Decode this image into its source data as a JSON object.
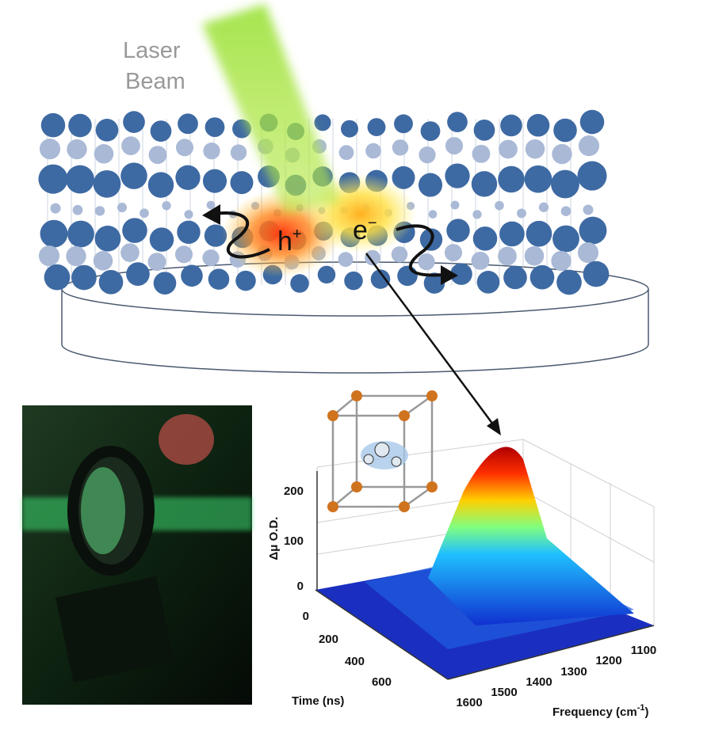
{
  "laser_label": {
    "lines": [
      "Laser",
      "Beam"
    ]
  },
  "hole_label": {
    "base": "h",
    "sup": "+"
  },
  "electron_label": {
    "base": "e",
    "sup": "−"
  },
  "plot": {
    "y_label": "Δμ O.D.",
    "y_ticks": [
      "0",
      "100",
      "200"
    ],
    "time_label": "Time (ns)",
    "time_ticks": [
      "0",
      "200",
      "400",
      "600"
    ],
    "frequency_label": {
      "base": "Frequency (cm",
      "sup": "-1",
      "end": ")"
    },
    "frequency_ticks": [
      "1600",
      "1500",
      "1400",
      "1300",
      "1200",
      "1100"
    ]
  }
}
